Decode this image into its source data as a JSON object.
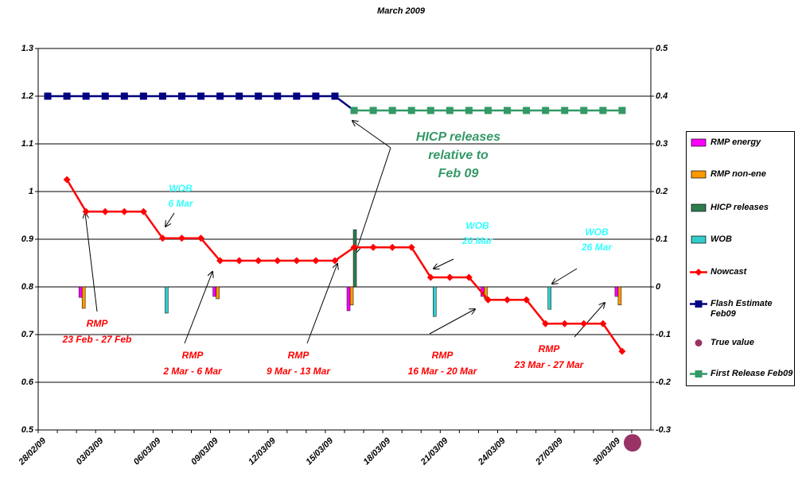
{
  "chart_data": {
    "type": "line",
    "title": "March 2009",
    "categories": [
      "28/02/09",
      null,
      null,
      "03/03/09",
      null,
      null,
      "06/03/09",
      null,
      null,
      "09/03/09",
      null,
      null,
      "12/03/09",
      null,
      null,
      "15/03/09",
      null,
      null,
      "18/03/09",
      null,
      null,
      "21/03/09",
      null,
      null,
      "24/03/09",
      null,
      null,
      "27/03/09",
      null,
      null,
      "30/03/09",
      null
    ],
    "ylim": [
      0.5,
      1.3
    ],
    "yticks": [
      0.5,
      0.6,
      0.7,
      0.8,
      0.9,
      1,
      1.1,
      1.2,
      1.3
    ],
    "y2lim": [
      -0.3,
      0.5
    ],
    "y2ticks": [
      -0.3,
      -0.2,
      -0.1,
      0,
      0.1,
      0.2,
      0.3,
      0.4,
      0.5
    ],
    "grid": true,
    "legend": "right",
    "series": [
      {
        "name": "RMP energy",
        "type": "bar",
        "axis": "y2",
        "color": "#ff00ff",
        "values": [
          null,
          null,
          -0.022,
          null,
          null,
          null,
          null,
          null,
          null,
          -0.02,
          null,
          null,
          null,
          null,
          null,
          null,
          -0.05,
          null,
          null,
          null,
          null,
          null,
          null,
          -0.02,
          null,
          null,
          null,
          null,
          null,
          null,
          -0.02,
          null
        ]
      },
      {
        "name": "RMP non-ene",
        "type": "bar",
        "axis": "y2",
        "color": "#ff9900",
        "values": [
          null,
          null,
          -0.045,
          null,
          null,
          null,
          null,
          null,
          null,
          -0.025,
          null,
          null,
          null,
          null,
          null,
          null,
          -0.038,
          null,
          null,
          null,
          null,
          null,
          null,
          -0.025,
          null,
          null,
          null,
          null,
          null,
          null,
          -0.038,
          null
        ]
      },
      {
        "name": "HICP releases",
        "type": "bar",
        "axis": "y2",
        "color": "#2e7d4f",
        "values": [
          null,
          null,
          null,
          null,
          null,
          null,
          null,
          null,
          null,
          null,
          null,
          null,
          null,
          null,
          null,
          null,
          0.12,
          null,
          null,
          null,
          null,
          null,
          null,
          null,
          null,
          null,
          null,
          null,
          null,
          null,
          null,
          null
        ]
      },
      {
        "name": "WOB",
        "type": "bar",
        "axis": "y2",
        "color": "#33cccc",
        "values": [
          null,
          null,
          null,
          null,
          null,
          null,
          -0.055,
          null,
          null,
          null,
          null,
          null,
          null,
          null,
          null,
          null,
          null,
          null,
          null,
          null,
          -0.062,
          null,
          null,
          null,
          null,
          null,
          -0.047,
          null,
          null,
          null,
          null,
          null
        ]
      },
      {
        "name": "Nowcast",
        "type": "line",
        "marker": "diamond",
        "color": "#ff0000",
        "values": [
          null,
          1.025,
          0.958,
          0.958,
          0.958,
          0.958,
          0.902,
          0.902,
          0.902,
          0.855,
          0.855,
          0.855,
          0.855,
          0.855,
          0.855,
          0.855,
          0.883,
          0.883,
          0.883,
          0.883,
          0.82,
          0.82,
          0.82,
          0.773,
          0.773,
          0.773,
          0.723,
          0.723,
          0.723,
          0.723,
          0.665,
          null
        ]
      },
      {
        "name": "Flash Estimate Feb09",
        "type": "line",
        "marker": "square",
        "color": "#000080",
        "values": [
          1.2,
          1.2,
          1.2,
          1.2,
          1.2,
          1.2,
          1.2,
          1.2,
          1.2,
          1.2,
          1.2,
          1.2,
          1.2,
          1.2,
          1.2,
          1.2,
          1.17,
          null,
          null,
          null,
          null,
          null,
          null,
          null,
          null,
          null,
          null,
          null,
          null,
          null,
          null,
          null
        ]
      },
      {
        "name": "True value",
        "type": "scatter",
        "axis": "y2",
        "color": "#993366",
        "values": [
          null,
          null,
          null,
          null,
          null,
          null,
          null,
          null,
          null,
          null,
          null,
          null,
          null,
          null,
          null,
          null,
          null,
          null,
          null,
          null,
          null,
          null,
          null,
          null,
          null,
          null,
          null,
          null,
          null,
          null,
          null,
          -0.327
        ]
      },
      {
        "name": "First Release Feb09",
        "type": "line",
        "marker": "square",
        "color": "#339966",
        "values": [
          null,
          null,
          null,
          null,
          null,
          null,
          null,
          null,
          null,
          null,
          null,
          null,
          null,
          null,
          null,
          null,
          1.17,
          1.17,
          1.17,
          1.17,
          1.17,
          1.17,
          1.17,
          1.17,
          1.17,
          1.17,
          1.17,
          1.17,
          1.17,
          1.17,
          1.17,
          null
        ]
      }
    ],
    "annotations": [
      {
        "lines": [
          "WOB",
          "6 Mar"
        ],
        "color": "#33ffff"
      },
      {
        "lines": [
          "WOB",
          "20 Mar"
        ],
        "color": "#33ffff"
      },
      {
        "lines": [
          "WOB",
          "26 Mar"
        ],
        "color": "#33ffff"
      },
      {
        "lines": [
          "HICP releases",
          "relative to",
          "Feb 09"
        ],
        "color": "#339966"
      },
      {
        "lines": [
          "RMP",
          "23 Feb - 27 Feb"
        ],
        "color": "#ff0000"
      },
      {
        "lines": [
          "RMP",
          "2 Mar - 6 Mar"
        ],
        "color": "#ff0000"
      },
      {
        "lines": [
          "RMP",
          "9 Mar - 13 Mar"
        ],
        "color": "#ff0000"
      },
      {
        "lines": [
          "RMP",
          "16 Mar - 20 Mar"
        ],
        "color": "#ff0000"
      },
      {
        "lines": [
          "RMP",
          "23 Mar - 27 Mar"
        ],
        "color": "#ff0000"
      }
    ]
  }
}
